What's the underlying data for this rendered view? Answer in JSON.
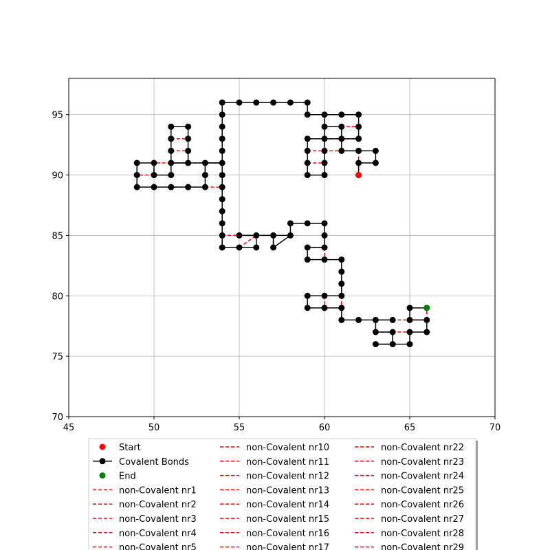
{
  "chart_data": {
    "type": "line",
    "title": "",
    "xlabel": "",
    "ylabel": "",
    "xlim": [
      45,
      70
    ],
    "ylim": [
      70,
      98
    ],
    "xticks": [
      45,
      50,
      55,
      60,
      65,
      70
    ],
    "yticks": [
      70,
      75,
      80,
      85,
      90,
      95
    ],
    "grid": true,
    "legend_position": "bottom-center",
    "colors": {
      "start": "#ff0000",
      "covalent": "#000000",
      "end": "#008000",
      "noncovalent": "#ff0000"
    },
    "start": {
      "x": 62,
      "y": 90
    },
    "end": {
      "x": 66,
      "y": 79
    },
    "covalent_path": [
      [
        62,
        90
      ],
      [
        62,
        91
      ],
      [
        63,
        91
      ],
      [
        63,
        92
      ],
      [
        62,
        92
      ],
      [
        61,
        92
      ],
      [
        61,
        93
      ],
      [
        62,
        93
      ],
      [
        62,
        94
      ],
      [
        62,
        95
      ],
      [
        61,
        95
      ],
      [
        60,
        95
      ],
      [
        59,
        95
      ],
      [
        59,
        96
      ],
      [
        58,
        96
      ],
      [
        57,
        96
      ],
      [
        56,
        96
      ],
      [
        55,
        96
      ],
      [
        54,
        96
      ],
      [
        54,
        95
      ],
      [
        54,
        94
      ],
      [
        54,
        93
      ],
      [
        54,
        92
      ],
      [
        54,
        91
      ],
      [
        53,
        91
      ],
      [
        53,
        90
      ],
      [
        53,
        89
      ],
      [
        52,
        89
      ],
      [
        51,
        89
      ],
      [
        50,
        89
      ],
      [
        49,
        89
      ],
      [
        49,
        90
      ],
      [
        49,
        91
      ],
      [
        50,
        91
      ],
      [
        50,
        90
      ],
      [
        51,
        90
      ],
      [
        51,
        91
      ],
      [
        52,
        91
      ],
      [
        52,
        92
      ],
      [
        52,
        93
      ],
      [
        52,
        94
      ],
      [
        51,
        94
      ],
      [
        51,
        93
      ],
      [
        51,
        92
      ],
      [
        51,
        91
      ],
      [
        52,
        91
      ],
      [
        53,
        91
      ],
      [
        54,
        91
      ],
      [
        54,
        90
      ],
      [
        54,
        89
      ],
      [
        54,
        88
      ],
      [
        54,
        87
      ],
      [
        54,
        86
      ],
      [
        54,
        85
      ],
      [
        54,
        84
      ],
      [
        55,
        84
      ],
      [
        56,
        84
      ],
      [
        56,
        85
      ],
      [
        55,
        85
      ],
      [
        56,
        85
      ],
      [
        57,
        85
      ],
      [
        57,
        84
      ],
      [
        58,
        85
      ],
      [
        58,
        86
      ],
      [
        59,
        86
      ],
      [
        60,
        86
      ],
      [
        60,
        85
      ],
      [
        60,
        84
      ],
      [
        59,
        84
      ],
      [
        59,
        83
      ],
      [
        60,
        83
      ],
      [
        61,
        83
      ],
      [
        61,
        82
      ],
      [
        61,
        81
      ],
      [
        61,
        80
      ],
      [
        60,
        80
      ],
      [
        59,
        80
      ],
      [
        59,
        79
      ],
      [
        60,
        79
      ],
      [
        61,
        79
      ],
      [
        61,
        78
      ],
      [
        62,
        78
      ],
      [
        63,
        78
      ],
      [
        63,
        77
      ],
      [
        64,
        77
      ],
      [
        64,
        76
      ],
      [
        63,
        76
      ],
      [
        64,
        76
      ],
      [
        65,
        76
      ],
      [
        65,
        77
      ],
      [
        66,
        77
      ],
      [
        66,
        78
      ],
      [
        65,
        78
      ],
      [
        65,
        79
      ],
      [
        66,
        79
      ]
    ],
    "covalent_extra_nodes": [
      [
        59,
        93
      ],
      [
        60,
        93
      ],
      [
        59,
        92
      ],
      [
        59,
        91
      ],
      [
        59,
        90
      ],
      [
        60,
        90
      ],
      [
        60,
        91
      ],
      [
        60,
        92
      ],
      [
        60,
        94
      ],
      [
        61,
        94
      ],
      [
        64,
        78
      ]
    ],
    "covalent_extra_links": [
      [
        [
          59,
          93
        ],
        [
          59,
          92
        ]
      ],
      [
        [
          59,
          92
        ],
        [
          59,
          91
        ]
      ],
      [
        [
          59,
          91
        ],
        [
          59,
          90
        ]
      ],
      [
        [
          59,
          90
        ],
        [
          60,
          90
        ]
      ],
      [
        [
          60,
          90
        ],
        [
          60,
          91
        ]
      ],
      [
        [
          60,
          91
        ],
        [
          60,
          92
        ]
      ],
      [
        [
          60,
          92
        ],
        [
          60,
          93
        ]
      ],
      [
        [
          60,
          93
        ],
        [
          59,
          93
        ]
      ],
      [
        [
          60,
          93
        ],
        [
          60,
          94
        ]
      ],
      [
        [
          60,
          94
        ],
        [
          60,
          95
        ]
      ],
      [
        [
          60,
          94
        ],
        [
          61,
          94
        ]
      ],
      [
        [
          61,
          94
        ],
        [
          61,
          93
        ]
      ],
      [
        [
          60,
          93
        ],
        [
          61,
          93
        ]
      ],
      [
        [
          57,
          84
        ],
        [
          57,
          85
        ]
      ],
      [
        [
          58,
          85
        ],
        [
          57,
          85
        ]
      ],
      [
        [
          64,
          78
        ],
        [
          63,
          78
        ]
      ]
    ],
    "noncovalent_bonds": [
      [
        [
          60,
          95
        ],
        [
          61,
          95
        ]
      ],
      [
        [
          60,
          94
        ],
        [
          62,
          94
        ]
      ],
      [
        [
          60,
          93
        ],
        [
          62,
          93
        ]
      ],
      [
        [
          59,
          92
        ],
        [
          62,
          92
        ]
      ],
      [
        [
          62,
          92
        ],
        [
          62,
          90
        ]
      ],
      [
        [
          59,
          91
        ],
        [
          60,
          91
        ]
      ],
      [
        [
          50,
          90
        ],
        [
          49,
          90
        ]
      ],
      [
        [
          51,
          91
        ],
        [
          50,
          91
        ]
      ],
      [
        [
          52,
          91
        ],
        [
          53,
          91
        ]
      ],
      [
        [
          53,
          91
        ],
        [
          53,
          90
        ]
      ],
      [
        [
          53,
          89
        ],
        [
          54,
          89
        ]
      ],
      [
        [
          51,
          93
        ],
        [
          52,
          93
        ]
      ],
      [
        [
          51,
          92
        ],
        [
          52,
          92
        ]
      ],
      [
        [
          50,
          91
        ],
        [
          50,
          90
        ]
      ],
      [
        [
          54,
          85
        ],
        [
          55,
          85
        ]
      ],
      [
        [
          55,
          84
        ],
        [
          56,
          85
        ]
      ],
      [
        [
          56,
          85
        ],
        [
          57,
          85
        ]
      ],
      [
        [
          60,
          84
        ],
        [
          60,
          83
        ]
      ],
      [
        [
          60,
          80
        ],
        [
          60,
          79
        ]
      ],
      [
        [
          61,
          80
        ],
        [
          61,
          79
        ]
      ],
      [
        [
          63,
          78
        ],
        [
          66,
          78
        ]
      ],
      [
        [
          63,
          77
        ],
        [
          65,
          77
        ]
      ],
      [
        [
          63,
          77
        ],
        [
          63,
          78
        ]
      ],
      [
        [
          64,
          77
        ],
        [
          64,
          76
        ]
      ],
      [
        [
          66,
          78
        ],
        [
          66,
          79
        ]
      ],
      [
        [
          51,
          91
        ],
        [
          51,
          90
        ]
      ],
      [
        [
          52,
          89
        ],
        [
          51,
          89
        ]
      ],
      [
        [
          58,
          85
        ],
        [
          57,
          84
        ]
      ],
      [
        [
          59,
          84
        ],
        [
          60,
          84
        ]
      ]
    ],
    "legend": {
      "col1": [
        "Start",
        "Covalent Bonds",
        "End",
        "non-Covalent nr1",
        "non-Covalent nr2",
        "non-Covalent nr3",
        "non-Covalent nr4",
        "non-Covalent nr5"
      ],
      "col2": [
        "non-Covalent nr10",
        "non-Covalent nr11",
        "non-Covalent nr12",
        "non-Covalent nr13",
        "non-Covalent nr14",
        "non-Covalent nr15",
        "non-Covalent nr16",
        "non-Covalent nr17"
      ],
      "col3": [
        "non-Covalent nr22",
        "non-Covalent nr23",
        "non-Covalent nr24",
        "non-Covalent nr25",
        "non-Covalent nr26",
        "non-Covalent nr27",
        "non-Covalent nr28",
        "non-Covalent nr29"
      ]
    }
  }
}
